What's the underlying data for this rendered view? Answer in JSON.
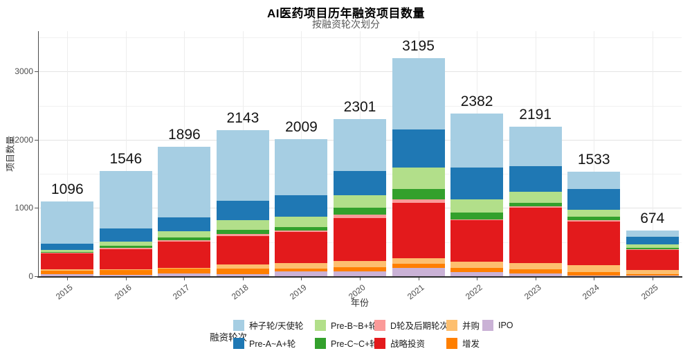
{
  "title": "AI医药项目历年融资项目数量",
  "subtitle": "按融资轮次划分",
  "chart_data": {
    "type": "bar",
    "stacked": true,
    "stack_note": "first series renders at top of each stack; last series at bottom",
    "title": "AI医药项目历年融资项目数量",
    "subtitle": "按融资轮次划分",
    "xlabel": "年份",
    "ylabel": "项目数量",
    "categories": [
      "2015",
      "2016",
      "2017",
      "2018",
      "2019",
      "2020",
      "2021",
      "2022",
      "2023",
      "2024",
      "2025"
    ],
    "totals": [
      1096,
      1546,
      1896,
      2143,
      2009,
      2301,
      3195,
      2382,
      2191,
      1533,
      674
    ],
    "ylim": [
      0,
      3500
    ],
    "yticks": [
      0,
      1000,
      2000,
      3000
    ],
    "yticks_minor": [
      500,
      1500,
      2500,
      3500
    ],
    "grid": "major and minor horizontal, vertical at category centers",
    "legend_title": "融资轮次",
    "legend_position": "bottom",
    "series": [
      {
        "name": "种子轮/天使轮",
        "color": "#a6cee3",
        "values": [
          620,
          844,
          1030,
          1037,
          824,
          763,
          1040,
          793,
          580,
          254,
          92
        ]
      },
      {
        "name": "Pre-A~A+轮",
        "color": "#1f78b4",
        "values": [
          92,
          193,
          203,
          285,
          315,
          356,
          565,
          468,
          376,
          305,
          112
        ]
      },
      {
        "name": "Pre-B~B+轮",
        "color": "#b2df8a",
        "values": [
          25,
          61,
          92,
          142,
          153,
          173,
          310,
          193,
          163,
          102,
          51
        ]
      },
      {
        "name": "Pre-C~C+轮",
        "color": "#33a02c",
        "values": [
          15,
          31,
          41,
          61,
          51,
          102,
          150,
          92,
          51,
          51,
          20
        ]
      },
      {
        "name": "D轮及后期轮次",
        "color": "#fb9a99",
        "values": [
          10,
          20,
          20,
          31,
          20,
          51,
          50,
          17,
          20,
          17,
          10
        ]
      },
      {
        "name": "战略投资",
        "color": "#e31a1c",
        "values": [
          234,
          295,
          386,
          417,
          458,
          631,
          820,
          610,
          807,
          641,
          300
        ]
      },
      {
        "name": "并购",
        "color": "#fdbf6f",
        "values": [
          20,
          15,
          15,
          60,
          81,
          92,
          80,
          92,
          92,
          102,
          61
        ]
      },
      {
        "name": "增发",
        "color": "#ff7f00",
        "values": [
          50,
          70,
          67,
          80,
          41,
          67,
          60,
          61,
          61,
          51,
          20
        ]
      },
      {
        "name": "IPO",
        "color": "#cab2d6",
        "values": [
          30,
          17,
          42,
          30,
          66,
          66,
          120,
          56,
          41,
          10,
          8
        ]
      }
    ],
    "legend_columns": [
      [
        0,
        1
      ],
      [
        2,
        3
      ],
      [
        4,
        5
      ],
      [
        6,
        7
      ],
      [
        8
      ]
    ]
  }
}
